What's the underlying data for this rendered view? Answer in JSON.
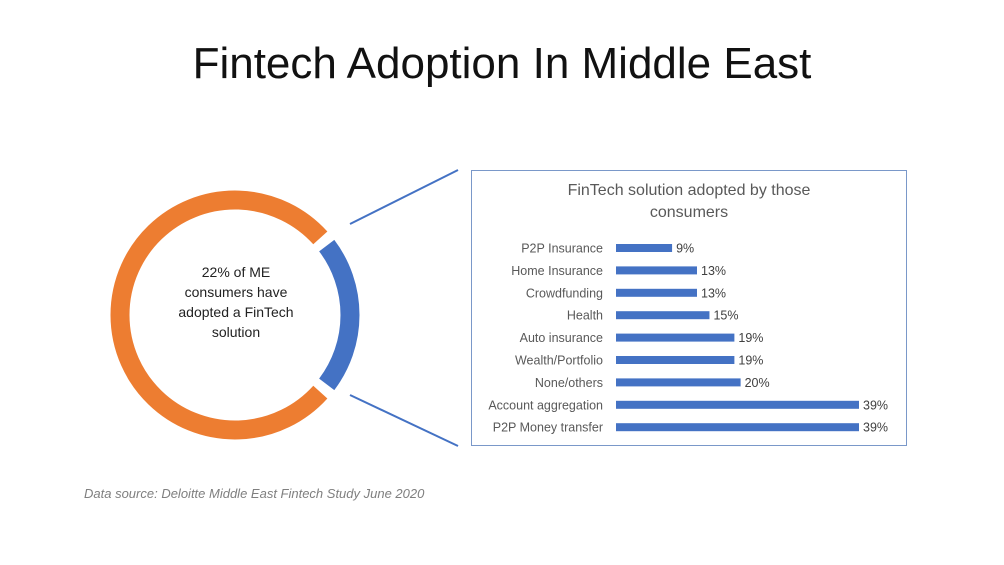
{
  "page": {
    "title": "Fintech Adoption In Middle East",
    "source": "Data source: Deloitte Middle East Fintech Study June 2020"
  },
  "donut": {
    "label_lines": [
      "22% of ME",
      "consumers have",
      "adopted a FinTech",
      "solution"
    ],
    "adopted_pct": 22,
    "colors": {
      "adopted": "#4472c4",
      "rest": "#ed7d31"
    }
  },
  "chart_data": {
    "type": "bar",
    "orientation": "horizontal",
    "title_lines": [
      "FinTech solution adopted by those",
      "consumers"
    ],
    "categories": [
      "P2P Insurance",
      "Home Insurance",
      "Crowdfunding",
      "Health",
      "Auto insurance",
      "Wealth/Portfolio",
      "None/others",
      "Account aggregation",
      "P2P Money transfer"
    ],
    "values": [
      9,
      13,
      13,
      15,
      19,
      19,
      20,
      39,
      39
    ],
    "value_labels": [
      "9%",
      "13%",
      "13%",
      "15%",
      "19%",
      "19%",
      "20%",
      "39%",
      "39%"
    ],
    "xlim": [
      0,
      39
    ],
    "bar_color": "#4472c4",
    "grid": false,
    "legend": "none"
  }
}
